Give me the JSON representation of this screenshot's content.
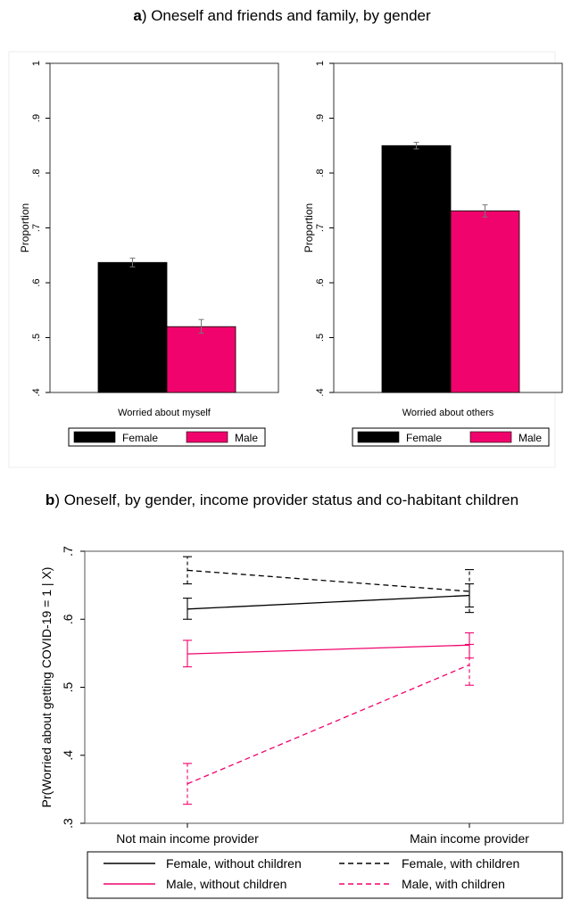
{
  "panel_a": {
    "title_letter": "a",
    "title_rest": ") Oneself and friends and family, by gender"
  },
  "panel_b": {
    "title_letter": "b",
    "title_rest": ") Oneself, by gender, income provider status and co-habitant children"
  },
  "colors": {
    "female": "#000000",
    "male": "#f0036c",
    "frame": "#d9d9d9",
    "errbar": "#777777"
  },
  "chart_data": [
    {
      "type": "bar",
      "panel": "a-left",
      "categories": [
        "Worried about myself"
      ],
      "series": [
        {
          "name": "Female",
          "values": [
            0.637
          ],
          "ci": [
            [
              0.629,
              0.645
            ]
          ]
        },
        {
          "name": "Male",
          "values": [
            0.52
          ],
          "ci": [
            [
              0.508,
              0.533
            ]
          ]
        }
      ],
      "ylabel": "Proportion",
      "ylim": [
        0.4,
        1.0
      ],
      "yticks": [
        0.4,
        0.5,
        0.6,
        0.7,
        0.8,
        0.9,
        1.0
      ],
      "ytick_labels": [
        ".4",
        ".5",
        ".6",
        ".7",
        ".8",
        ".9",
        "1"
      ],
      "xlabel": "Worried about myself",
      "legend": [
        "Female",
        "Male"
      ],
      "legend_position": "bottom"
    },
    {
      "type": "bar",
      "panel": "a-right",
      "categories": [
        "Worried about others"
      ],
      "series": [
        {
          "name": "Female",
          "values": [
            0.85
          ],
          "ci": [
            [
              0.844,
              0.856
            ]
          ]
        },
        {
          "name": "Male",
          "values": [
            0.731
          ],
          "ci": [
            [
              0.72,
              0.742
            ]
          ]
        }
      ],
      "ylabel": "Proportion",
      "ylim": [
        0.4,
        1.0
      ],
      "yticks": [
        0.4,
        0.5,
        0.6,
        0.7,
        0.8,
        0.9,
        1.0
      ],
      "ytick_labels": [
        ".4",
        ".5",
        ".6",
        ".7",
        ".8",
        ".9",
        "1"
      ],
      "xlabel": "Worried about others",
      "legend": [
        "Female",
        "Male"
      ],
      "legend_position": "bottom"
    },
    {
      "type": "line",
      "panel": "b",
      "categories": [
        "Not main income provider",
        "Main income provider"
      ],
      "series": [
        {
          "name": "Female, without children",
          "color": "#000000",
          "dash": false,
          "values": [
            0.615,
            0.635
          ],
          "ci": [
            [
              0.6,
              0.631
            ],
            [
              0.618,
              0.652
            ]
          ]
        },
        {
          "name": "Female, with children",
          "color": "#000000",
          "dash": true,
          "values": [
            0.672,
            0.641
          ],
          "ci": [
            [
              0.652,
              0.692
            ],
            [
              0.61,
              0.673
            ]
          ]
        },
        {
          "name": "Male, without children",
          "color": "#f0036c",
          "dash": false,
          "values": [
            0.549,
            0.562
          ],
          "ci": [
            [
              0.53,
              0.569
            ],
            [
              0.543,
              0.58
            ]
          ]
        },
        {
          "name": "Male, with children",
          "color": "#f0036c",
          "dash": true,
          "values": [
            0.358,
            0.533
          ],
          "ci": [
            [
              0.328,
              0.388
            ],
            [
              0.503,
              0.563
            ]
          ]
        }
      ],
      "ylabel": "Pr(Worried about getting COVID-19 = 1 | X)",
      "ylim": [
        0.3,
        0.7
      ],
      "yticks": [
        0.3,
        0.4,
        0.5,
        0.6,
        0.7
      ],
      "ytick_labels": [
        ".3",
        ".4",
        ".5",
        ".6",
        ".7"
      ],
      "legend_position": "bottom"
    }
  ]
}
